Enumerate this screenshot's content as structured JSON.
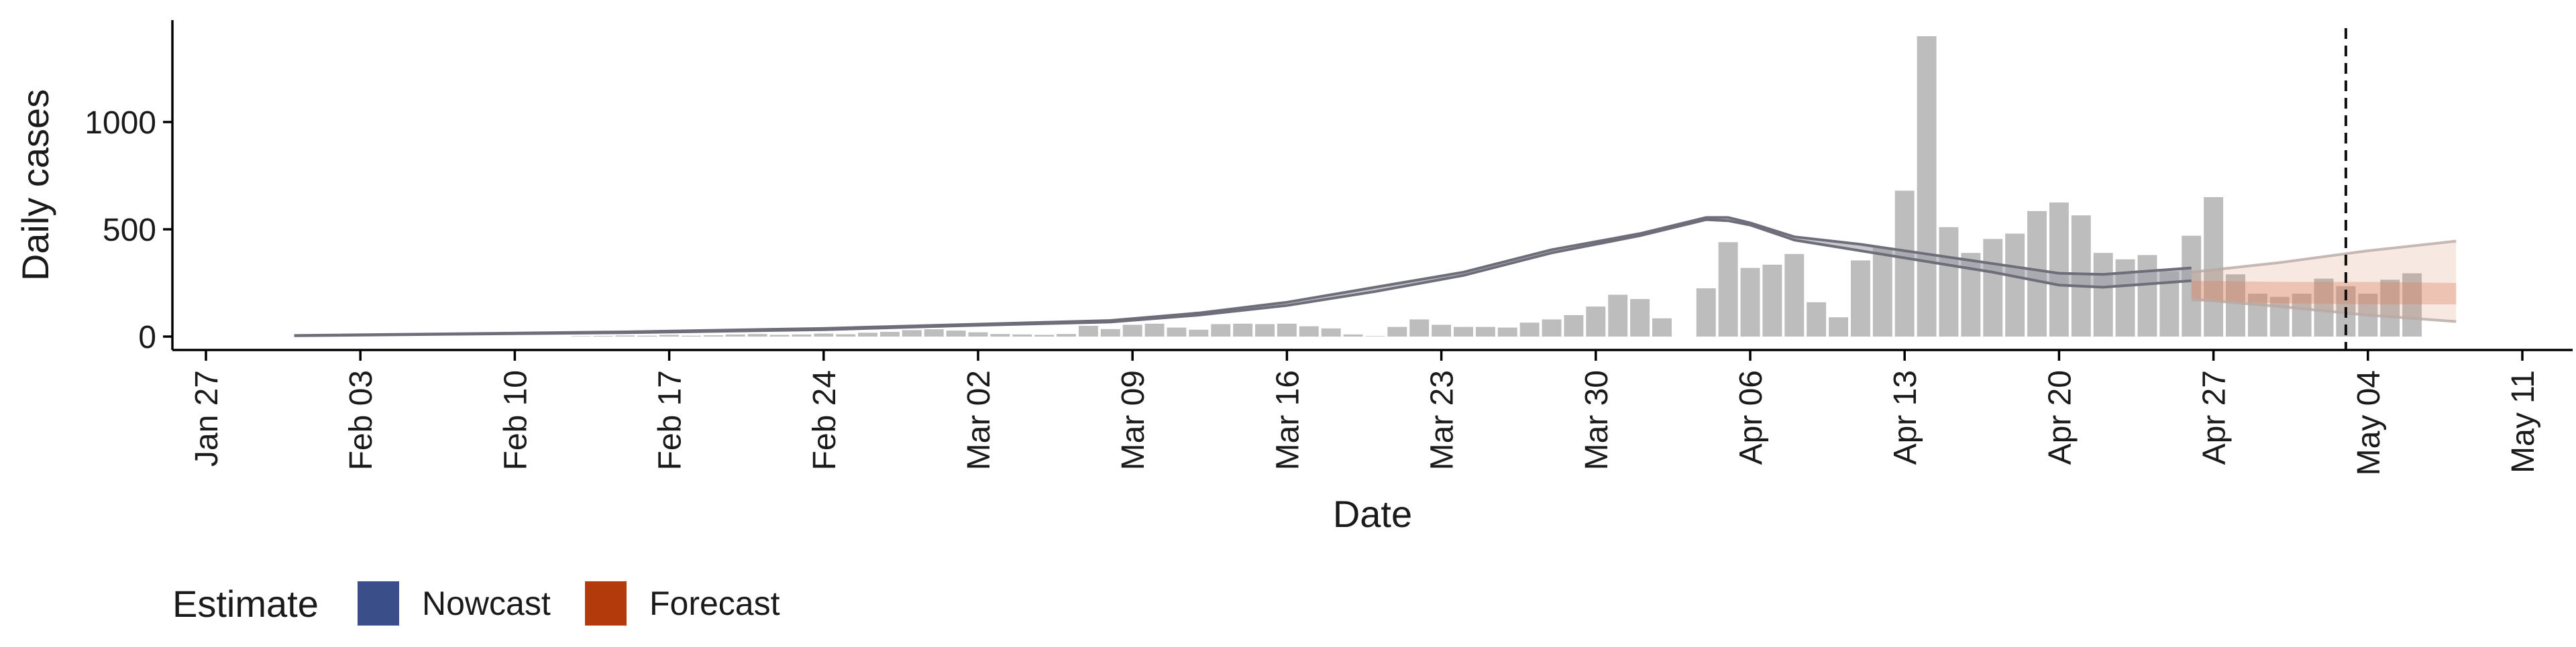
{
  "chart_data": {
    "type": "bar",
    "title": "",
    "xlabel": "Date",
    "ylabel": "Daily cases",
    "x_ticks": [
      "Jan 27",
      "Feb 03",
      "Feb 10",
      "Feb 17",
      "Feb 24",
      "Mar 02",
      "Mar 09",
      "Mar 16",
      "Mar 23",
      "Mar 30",
      "Apr 06",
      "Apr 13",
      "Apr 20",
      "Apr 27",
      "May 04",
      "May 11"
    ],
    "y_ticks": [
      0,
      500,
      1000
    ],
    "xlim": [
      "2020-01-27",
      "2020-05-11"
    ],
    "ylim": [
      -60,
      1470
    ],
    "grid": false,
    "legend": {
      "title": "Estimate",
      "position": "bottom-left",
      "items": [
        {
          "label": "Nowcast",
          "color": "#3a4f8a"
        },
        {
          "label": "Forecast",
          "color": "#b33a0a"
        }
      ]
    },
    "vline_date": "2020-05-03",
    "bar_color": "#bdbdbd",
    "line_color": "#6e6e7a",
    "forecast_color": "#d9805f",
    "bars": {
      "start_date": "2020-02-13",
      "values": [
        2,
        3,
        5,
        4,
        8,
        4,
        6,
        10,
        12,
        8,
        10,
        14,
        11,
        18,
        22,
        30,
        34,
        28,
        20,
        12,
        10,
        8,
        12,
        50,
        35,
        55,
        60,
        42,
        32,
        58,
        60,
        58,
        60,
        48,
        38,
        10,
        2,
        45,
        80,
        55,
        45,
        45,
        42,
        65,
        80,
        100,
        140,
        195,
        175,
        85,
        0,
        225,
        440,
        320,
        335,
        385,
        160,
        90,
        355,
        415,
        680,
        1400,
        510,
        390,
        455,
        480,
        585,
        625,
        565,
        390,
        360,
        380,
        305,
        470,
        650,
        290,
        200,
        185,
        200,
        270,
        235,
        200,
        265,
        295
      ]
    },
    "estimate_line": {
      "dates": [
        "2020-01-31",
        "2020-02-15",
        "2020-02-24",
        "2020-03-01",
        "2020-03-08",
        "2020-03-12",
        "2020-03-16",
        "2020-03-20",
        "2020-03-24",
        "2020-03-28",
        "2020-04-01",
        "2020-04-04",
        "2020-04-05",
        "2020-04-06",
        "2020-04-08",
        "2020-04-11",
        "2020-04-14",
        "2020-04-17",
        "2020-04-20",
        "2020-04-22",
        "2020-04-26"
      ],
      "upper": [
        5,
        22,
        38,
        55,
        75,
        110,
        160,
        230,
        300,
        405,
        480,
        555,
        555,
        530,
        465,
        430,
        385,
        340,
        295,
        290,
        320
      ],
      "lower": [
        4,
        18,
        32,
        50,
        68,
        100,
        145,
        210,
        285,
        390,
        470,
        545,
        540,
        520,
        450,
        400,
        350,
        300,
        240,
        230,
        260
      ],
      "median": [
        4,
        20,
        35,
        52,
        71,
        105,
        152,
        220,
        292,
        398,
        475,
        550,
        548,
        525,
        458,
        415,
        368,
        320,
        268,
        260,
        290
      ]
    },
    "forecast": {
      "dates": [
        "2020-04-26",
        "2020-04-30",
        "2020-05-04",
        "2020-05-08"
      ],
      "median": [
        210,
        200,
        195,
        190
      ],
      "inner_upper": [
        260,
        255,
        255,
        250
      ],
      "inner_lower": [
        165,
        155,
        150,
        150
      ],
      "outer_upper": [
        300,
        345,
        400,
        445
      ],
      "outer_lower": [
        175,
        140,
        100,
        70
      ]
    }
  }
}
